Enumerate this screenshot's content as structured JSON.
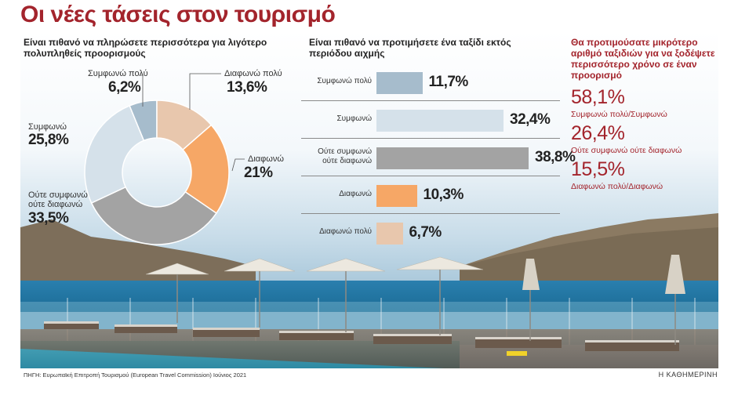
{
  "title": "Οι νέες τάσεις στον τουρισμό",
  "colors": {
    "accent": "#a3242c",
    "pie": [
      "#a6bccc",
      "#e8c7ad",
      "#f6a766",
      "#a3a3a3",
      "#d5e1ea"
    ],
    "bars": [
      "#a6bccc",
      "#d5e1ea",
      "#a3a3a3",
      "#f6a766",
      "#e8c7ad"
    ]
  },
  "chart_data": [
    {
      "type": "pie",
      "title": "Είναι πιθανό να πληρώσετε περισσότερα για λιγότερο πολυπληθείς προορισμούς",
      "labels": [
        "Συμφωνώ πολύ",
        "Διαφωνώ πολύ",
        "Διαφωνώ",
        "Ούτε συμφωνώ ούτε διαφωνώ",
        "Συμφωνώ"
      ],
      "value_labels": [
        "6,2%",
        "13,6%",
        "21%",
        "33,5%",
        "25,8%"
      ],
      "values": [
        6.2,
        13.6,
        21,
        33.5,
        25.8
      ]
    },
    {
      "type": "bar",
      "title": "Είναι πιθανό να προτιμήσετε ένα ταξίδι εκτός περιόδου αιχμής",
      "categories": [
        "Συμφωνώ πολύ",
        "Συμφωνώ",
        "Ούτε συμφωνώ ούτε διαφωνώ",
        "Διαφωνώ",
        "Διαφωνώ πολύ"
      ],
      "value_labels": [
        "11,7%",
        "32,4%",
        "38,8%",
        "10,3%",
        "6,7%"
      ],
      "values": [
        11.7,
        32.4,
        38.8,
        10.3,
        6.7
      ]
    },
    {
      "type": "table",
      "title": "Θα προτιμούσατε μικρότερο αριθμό ταξιδιών για να ξοδέψετε περισσότερο χρόνο σε έναν προορισμό",
      "rows": [
        {
          "value": "58,1%",
          "label": "Συμφωνώ πολύ/Συμφωνώ"
        },
        {
          "value": "26,4%",
          "label": "Ούτε συμφωνώ ούτε διαφωνώ"
        },
        {
          "value": "15,5%",
          "label": "Διαφωνώ πολύ/Διαφωνώ"
        }
      ]
    }
  ],
  "source": "ΠΗΓΗ: Ευρωπαϊκή Επιτροπή Τουρισμού (European Travel Commission) Ιούνιος 2021",
  "brand": "Η ΚΑΘΗΜΕΡΙΝΗ"
}
